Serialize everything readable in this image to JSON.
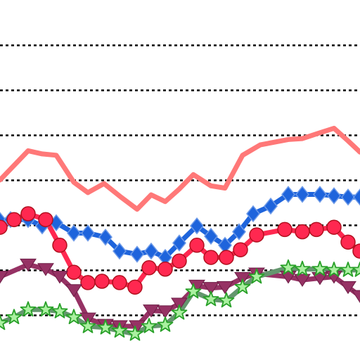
{
  "chart_data": {
    "type": "line",
    "title": "",
    "xlabel": "",
    "ylabel": "",
    "grid": true,
    "ylim": [
      0,
      8
    ],
    "gridlines": [
      1,
      2,
      3,
      4,
      5,
      6,
      7
    ],
    "series": [
      {
        "color": "#ff7878",
        "marker": "none",
        "points": [
          [
            0,
            4.0
          ],
          [
            40,
            4.65
          ],
          [
            60,
            4.58
          ],
          [
            80,
            4.55
          ],
          [
            105,
            3.95
          ],
          [
            125,
            3.72
          ],
          [
            148,
            3.92
          ],
          [
            172,
            3.62
          ],
          [
            195,
            3.35
          ],
          [
            215,
            3.67
          ],
          [
            235,
            3.52
          ],
          [
            255,
            3.8
          ],
          [
            275,
            4.12
          ],
          [
            300,
            3.87
          ],
          [
            320,
            3.82
          ],
          [
            345,
            4.55
          ],
          [
            370,
            4.78
          ],
          [
            410,
            4.9
          ],
          [
            430,
            4.92
          ],
          [
            455,
            5.05
          ],
          [
            475,
            5.15
          ],
          [
            495,
            4.87
          ],
          [
            512,
            4.62
          ]
        ]
      },
      {
        "color": "#1e64dc",
        "marker": "diamond",
        "points": [
          [
            0,
            3.1
          ],
          [
            15,
            3.12
          ],
          [
            40,
            3.12
          ],
          [
            60,
            2.98
          ],
          [
            80,
            3.05
          ],
          [
            105,
            2.82
          ],
          [
            125,
            2.82
          ],
          [
            150,
            2.73
          ],
          [
            170,
            2.42
          ],
          [
            195,
            2.35
          ],
          [
            215,
            2.42
          ],
          [
            235,
            2.28
          ],
          [
            255,
            2.6
          ],
          [
            280,
            2.98
          ],
          [
            300,
            2.75
          ],
          [
            320,
            2.55
          ],
          [
            340,
            2.85
          ],
          [
            360,
            3.25
          ],
          [
            385,
            3.42
          ],
          [
            410,
            3.68
          ],
          [
            430,
            3.68
          ],
          [
            455,
            3.68
          ],
          [
            475,
            3.65
          ],
          [
            495,
            3.62
          ],
          [
            512,
            3.62
          ]
        ]
      },
      {
        "color": "#ff2850",
        "marker": "circle",
        "points": [
          [
            0,
            2.95
          ],
          [
            20,
            3.12
          ],
          [
            40,
            3.25
          ],
          [
            65,
            3.12
          ],
          [
            85,
            2.55
          ],
          [
            105,
            1.95
          ],
          [
            125,
            1.72
          ],
          [
            145,
            1.75
          ],
          [
            170,
            1.72
          ],
          [
            192,
            1.62
          ],
          [
            212,
            2.05
          ],
          [
            235,
            2.02
          ],
          [
            255,
            2.2
          ],
          [
            280,
            2.55
          ],
          [
            300,
            2.28
          ],
          [
            322,
            2.28
          ],
          [
            342,
            2.45
          ],
          [
            365,
            2.78
          ],
          [
            405,
            2.9
          ],
          [
            430,
            2.85
          ],
          [
            450,
            2.9
          ],
          [
            475,
            2.95
          ],
          [
            495,
            2.62
          ],
          [
            512,
            2.42
          ]
        ]
      },
      {
        "color": "#963264",
        "marker": "triangle",
        "points": [
          [
            0,
            1.85
          ],
          [
            40,
            2.12
          ],
          [
            65,
            2.02
          ],
          [
            85,
            1.85
          ],
          [
            105,
            1.55
          ],
          [
            125,
            0.92
          ],
          [
            150,
            0.78
          ],
          [
            170,
            0.75
          ],
          [
            195,
            0.75
          ],
          [
            215,
            1.1
          ],
          [
            235,
            1.08
          ],
          [
            255,
            1.25
          ],
          [
            280,
            1.65
          ],
          [
            300,
            1.6
          ],
          [
            320,
            1.62
          ],
          [
            345,
            1.82
          ],
          [
            365,
            1.92
          ],
          [
            410,
            1.85
          ],
          [
            430,
            1.78
          ],
          [
            455,
            1.82
          ],
          [
            475,
            1.85
          ],
          [
            495,
            1.62
          ],
          [
            512,
            1.42
          ]
        ]
      },
      {
        "color": "#64966e",
        "marker": "star",
        "points": [
          [
            0,
            0.82
          ],
          [
            20,
            0.95
          ],
          [
            40,
            1.12
          ],
          [
            65,
            1.12
          ],
          [
            85,
            1.08
          ],
          [
            105,
            0.95
          ],
          [
            125,
            0.75
          ],
          [
            150,
            0.72
          ],
          [
            170,
            0.65
          ],
          [
            192,
            0.58
          ],
          [
            212,
            0.75
          ],
          [
            235,
            0.78
          ],
          [
            255,
            1.05
          ],
          [
            275,
            1.52
          ],
          [
            300,
            1.35
          ],
          [
            322,
            1.32
          ],
          [
            345,
            1.62
          ],
          [
            365,
            1.85
          ],
          [
            410,
            2.05
          ],
          [
            430,
            2.02
          ],
          [
            455,
            2.02
          ],
          [
            475,
            2.0
          ],
          [
            495,
            2.0
          ],
          [
            512,
            2.0
          ]
        ]
      }
    ]
  }
}
